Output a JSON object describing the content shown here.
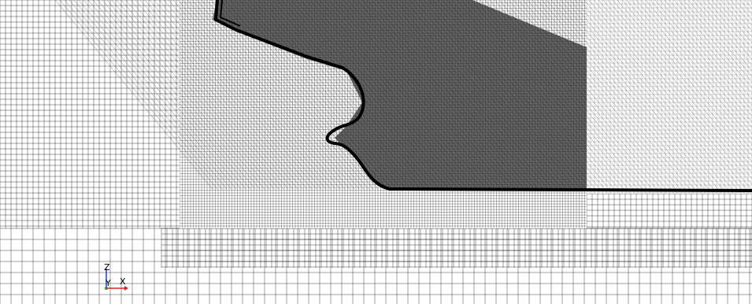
{
  "viewer": {
    "background": "#ffffff",
    "mesh_line_color": "#000000",
    "hull_color": "#000000"
  },
  "axes_triad": {
    "labels": {
      "z": "Z",
      "y": "Y",
      "x": "X"
    },
    "colors": {
      "z": "#1a3fd6",
      "y": "#1aa02a",
      "x": "#e02020"
    }
  }
}
